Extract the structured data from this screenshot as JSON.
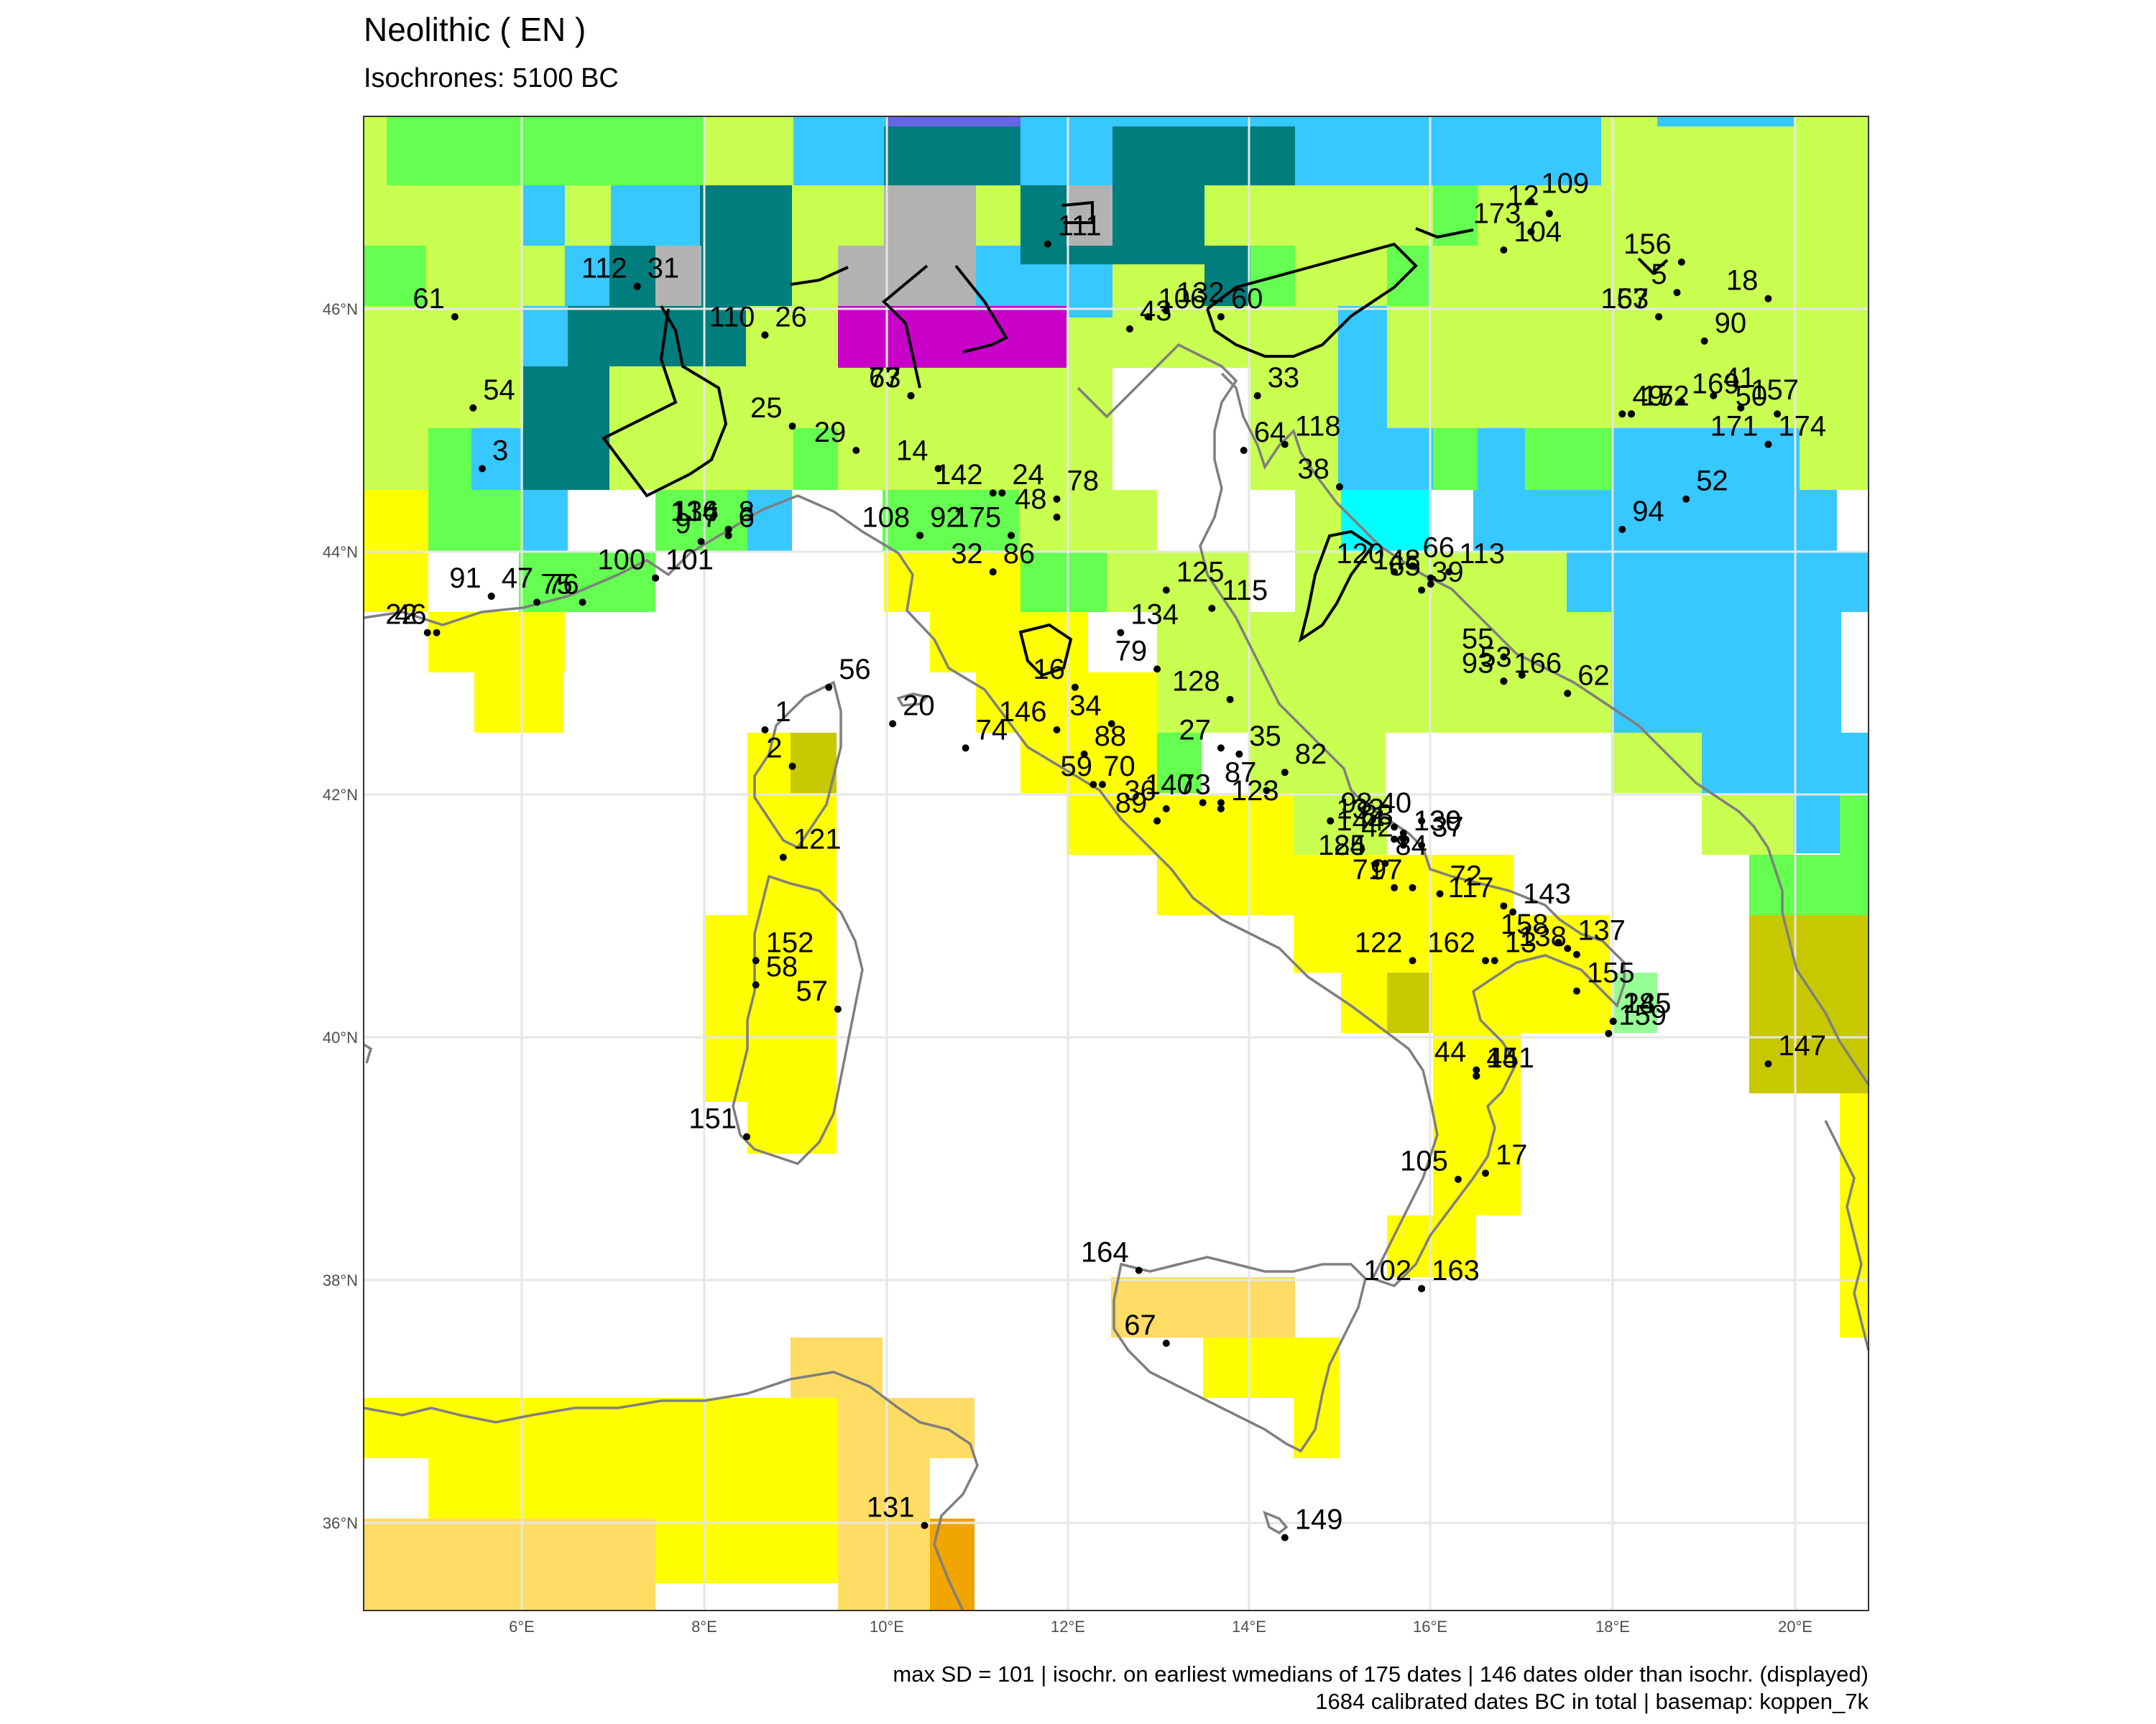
{
  "title": "Neolithic ( EN )",
  "subtitle": "Isochrones: 5100 BC",
  "caption": {
    "line1": "max SD = 101 | isochr. on earliest wmedians of 175 dates | 146 dates older than isochr. (displayed)",
    "line2": "1684 calibrated dates BC in total | basemap: koppen_7k"
  },
  "axes": {
    "lat_labels": [
      "46°N",
      "44°N",
      "42°N",
      "40°N",
      "38°N",
      "36°N"
    ],
    "lon_labels": [
      "6°E",
      "8°E",
      "10°E",
      "12°E",
      "14°E",
      "16°E",
      "18°E",
      "20°E"
    ]
  },
  "colors": {
    "bsh_yellow": "#ffff00",
    "bwh_orange": "#f0a500",
    "bsk_light_orange": "#ffdc64",
    "csa_lime": "#c8ff50",
    "cfb_green": "#64ff50",
    "cfa_green": "#32c864",
    "dfb_blue": "#37c8ff",
    "dfc_teal": "#007d7d",
    "et_grey": "#b2b2b2",
    "magenta": "#c800c8",
    "olive": "#c8c800",
    "mint": "#96ff96",
    "cyan": "#00ffff",
    "purple_blue": "#6464e6"
  },
  "chart_data": {
    "type": "map",
    "region": "Italy and Central Mediterranean",
    "lon_range": [
      4.3,
      20.8
    ],
    "lat_range": [
      35.3,
      47.6
    ],
    "sites": [
      {
        "id": "1",
        "lon": 8.7,
        "lat": 42.55
      },
      {
        "id": "2",
        "lon": 9.0,
        "lat": 42.25
      },
      {
        "id": "3",
        "lon": 5.6,
        "lat": 44.7
      },
      {
        "id": "5",
        "lon": 18.7,
        "lat": 46.15
      },
      {
        "id": "6",
        "lon": 8.3,
        "lat": 44.15
      },
      {
        "id": "7",
        "lon": 8.3,
        "lat": 44.15
      },
      {
        "id": "8",
        "lon": 8.3,
        "lat": 44.2
      },
      {
        "id": "9",
        "lon": 8.0,
        "lat": 44.1
      },
      {
        "id": "10",
        "lon": 7.5,
        "lat": 43.8
      },
      {
        "id": "12",
        "lon": 17.3,
        "lat": 46.8
      },
      {
        "id": "13",
        "lon": 16.7,
        "lat": 40.65
      },
      {
        "id": "14",
        "lon": 10.6,
        "lat": 44.7
      },
      {
        "id": "15",
        "lon": 18.2,
        "lat": 45.15
      },
      {
        "id": "16",
        "lon": 12.1,
        "lat": 42.9
      },
      {
        "id": "17",
        "lon": 16.6,
        "lat": 38.9
      },
      {
        "id": "18",
        "lon": 19.7,
        "lat": 46.1
      },
      {
        "id": "20",
        "lon": 10.1,
        "lat": 42.6
      },
      {
        "id": "22",
        "lon": 5.0,
        "lat": 43.35
      },
      {
        "id": "24",
        "lon": 11.3,
        "lat": 44.5
      },
      {
        "id": "25",
        "lon": 9.0,
        "lat": 45.05
      },
      {
        "id": "26",
        "lon": 8.7,
        "lat": 45.8
      },
      {
        "id": "27",
        "lon": 13.7,
        "lat": 42.4
      },
      {
        "id": "28",
        "lon": 18.0,
        "lat": 40.15
      },
      {
        "id": "29",
        "lon": 9.7,
        "lat": 44.85
      },
      {
        "id": "31",
        "lon": 7.3,
        "lat": 46.2
      },
      {
        "id": "32",
        "lon": 11.2,
        "lat": 43.85
      },
      {
        "id": "33",
        "lon": 14.1,
        "lat": 45.3
      },
      {
        "id": "34",
        "lon": 12.5,
        "lat": 42.6
      },
      {
        "id": "35",
        "lon": 13.9,
        "lat": 42.35
      },
      {
        "id": "36",
        "lon": 13.1,
        "lat": 41.9
      },
      {
        "id": "37",
        "lon": 15.9,
        "lat": 41.6
      },
      {
        "id": "38",
        "lon": 15.0,
        "lat": 44.55
      },
      {
        "id": "39",
        "lon": 15.9,
        "lat": 43.7
      },
      {
        "id": "40",
        "lon": 15.9,
        "lat": 41.8
      },
      {
        "id": "41",
        "lon": 19.1,
        "lat": 45.3
      },
      {
        "id": "42",
        "lon": 15.7,
        "lat": 41.6
      },
      {
        "id": "43",
        "lon": 12.7,
        "lat": 45.85
      },
      {
        "id": "44",
        "lon": 16.5,
        "lat": 39.75
      },
      {
        "id": "45",
        "lon": 16.5,
        "lat": 39.7
      },
      {
        "id": "46",
        "lon": 5.1,
        "lat": 43.35
      },
      {
        "id": "47",
        "lon": 5.7,
        "lat": 43.65
      },
      {
        "id": "48",
        "lon": 11.9,
        "lat": 44.3
      },
      {
        "id": "49",
        "lon": 18.1,
        "lat": 45.15
      },
      {
        "id": "50",
        "lon": 19.8,
        "lat": 45.15
      },
      {
        "id": "52",
        "lon": 18.8,
        "lat": 44.45
      },
      {
        "id": "53",
        "lon": 17.0,
        "lat": 43.0
      },
      {
        "id": "54",
        "lon": 5.5,
        "lat": 45.2
      },
      {
        "id": "55",
        "lon": 16.8,
        "lat": 43.15
      },
      {
        "id": "56",
        "lon": 9.4,
        "lat": 42.9
      },
      {
        "id": "57",
        "lon": 9.5,
        "lat": 40.25
      },
      {
        "id": "58",
        "lon": 8.6,
        "lat": 40.45
      },
      {
        "id": "59",
        "lon": 12.4,
        "lat": 42.1
      },
      {
        "id": "60",
        "lon": 13.7,
        "lat": 45.95
      },
      {
        "id": "61",
        "lon": 5.3,
        "lat": 45.95
      },
      {
        "id": "62",
        "lon": 17.5,
        "lat": 42.85
      },
      {
        "id": "63",
        "lon": 10.3,
        "lat": 45.3
      },
      {
        "id": "64",
        "lon": 13.95,
        "lat": 44.85
      },
      {
        "id": "65",
        "lon": 16.0,
        "lat": 43.75
      },
      {
        "id": "66",
        "lon": 15.8,
        "lat": 43.9
      },
      {
        "id": "67",
        "lon": 13.1,
        "lat": 37.5
      },
      {
        "id": "70",
        "lon": 12.3,
        "lat": 42.1
      },
      {
        "id": "71",
        "lon": 15.6,
        "lat": 41.25
      },
      {
        "id": "72",
        "lon": 16.1,
        "lat": 41.2
      },
      {
        "id": "73",
        "lon": 13.7,
        "lat": 41.95
      },
      {
        "id": "74",
        "lon": 10.9,
        "lat": 42.4
      },
      {
        "id": "75",
        "lon": 6.7,
        "lat": 43.6
      },
      {
        "id": "76",
        "lon": 6.2,
        "lat": 43.6
      },
      {
        "id": "77",
        "lon": 10.3,
        "lat": 45.3
      },
      {
        "id": "78",
        "lon": 11.9,
        "lat": 44.45
      },
      {
        "id": "79",
        "lon": 13.0,
        "lat": 43.05
      },
      {
        "id": "82",
        "lon": 14.4,
        "lat": 42.2
      },
      {
        "id": "83",
        "lon": 15.7,
        "lat": 41.7
      },
      {
        "id": "84",
        "lon": 15.5,
        "lat": 41.45
      },
      {
        "id": "85",
        "lon": 15.4,
        "lat": 41.45
      },
      {
        "id": "86",
        "lon": 11.2,
        "lat": 43.85
      },
      {
        "id": "87",
        "lon": 14.2,
        "lat": 42.05
      },
      {
        "id": "88",
        "lon": 12.2,
        "lat": 42.35
      },
      {
        "id": "89",
        "lon": 13.0,
        "lat": 41.8
      },
      {
        "id": "90",
        "lon": 19.0,
        "lat": 45.75
      },
      {
        "id": "91",
        "lon": 5.7,
        "lat": 43.65
      },
      {
        "id": "92",
        "lon": 10.4,
        "lat": 44.15
      },
      {
        "id": "93",
        "lon": 16.8,
        "lat": 42.95
      },
      {
        "id": "94",
        "lon": 18.1,
        "lat": 44.2
      },
      {
        "id": "97",
        "lon": 15.8,
        "lat": 41.25
      },
      {
        "id": "98",
        "lon": 14.9,
        "lat": 41.8
      },
      {
        "id": "100",
        "lon": 7.5,
        "lat": 43.8
      },
      {
        "id": "101",
        "lon": 7.5,
        "lat": 43.8
      },
      {
        "id": "102",
        "lon": 15.9,
        "lat": 37.95
      },
      {
        "id": "104",
        "lon": 16.8,
        "lat": 46.5
      },
      {
        "id": "105",
        "lon": 16.3,
        "lat": 38.85
      },
      {
        "id": "106",
        "lon": 12.9,
        "lat": 45.95
      },
      {
        "id": "108",
        "lon": 10.4,
        "lat": 44.15
      },
      {
        "id": "109",
        "lon": 17.1,
        "lat": 46.9
      },
      {
        "id": "110",
        "lon": 8.7,
        "lat": 45.8
      },
      {
        "id": "111",
        "lon": 11.8,
        "lat": 46.55
      },
      {
        "id": "112",
        "lon": 7.3,
        "lat": 46.2
      },
      {
        "id": "113",
        "lon": 16.2,
        "lat": 43.85
      },
      {
        "id": "114",
        "lon": 8.3,
        "lat": 44.2
      },
      {
        "id": "115",
        "lon": 13.6,
        "lat": 43.55
      },
      {
        "id": "117",
        "lon": 16.8,
        "lat": 41.1
      },
      {
        "id": "118",
        "lon": 14.4,
        "lat": 44.9
      },
      {
        "id": "120",
        "lon": 15.6,
        "lat": 43.85
      },
      {
        "id": "121",
        "lon": 8.9,
        "lat": 41.5
      },
      {
        "id": "122",
        "lon": 15.8,
        "lat": 40.65
      },
      {
        "id": "123",
        "lon": 13.7,
        "lat": 41.9
      },
      {
        "id": "124",
        "lon": 15.4,
        "lat": 41.45
      },
      {
        "id": "125",
        "lon": 13.1,
        "lat": 43.7
      },
      {
        "id": "128",
        "lon": 13.8,
        "lat": 42.8
      },
      {
        "id": "130",
        "lon": 15.7,
        "lat": 41.65
      },
      {
        "id": "131",
        "lon": 10.45,
        "lat": 36.0
      },
      {
        "id": "132",
        "lon": 13.1,
        "lat": 46.0
      },
      {
        "id": "133",
        "lon": 15.6,
        "lat": 41.75
      },
      {
        "id": "134",
        "lon": 12.6,
        "lat": 43.35
      },
      {
        "id": "136",
        "lon": 8.3,
        "lat": 44.2
      },
      {
        "id": "137",
        "lon": 17.5,
        "lat": 40.75
      },
      {
        "id": "138",
        "lon": 17.6,
        "lat": 40.7
      },
      {
        "id": "139",
        "lon": 15.7,
        "lat": 41.65
      },
      {
        "id": "140",
        "lon": 13.5,
        "lat": 41.95
      },
      {
        "id": "141",
        "lon": 16.5,
        "lat": 39.7
      },
      {
        "id": "142",
        "lon": 11.2,
        "lat": 44.5
      },
      {
        "id": "143",
        "lon": 16.9,
        "lat": 41.05
      },
      {
        "id": "144",
        "lon": 15.6,
        "lat": 41.65
      },
      {
        "id": "145",
        "lon": 18.0,
        "lat": 40.15
      },
      {
        "id": "146",
        "lon": 11.9,
        "lat": 42.55
      },
      {
        "id": "147",
        "lon": 19.7,
        "lat": 39.8
      },
      {
        "id": "148",
        "lon": 16.0,
        "lat": 43.8
      },
      {
        "id": "149",
        "lon": 14.4,
        "lat": 35.9
      },
      {
        "id": "151",
        "lon": 8.5,
        "lat": 39.2
      },
      {
        "id": "152",
        "lon": 8.6,
        "lat": 40.65
      },
      {
        "id": "153",
        "lon": 18.5,
        "lat": 45.95
      },
      {
        "id": "155",
        "lon": 17.6,
        "lat": 40.4
      },
      {
        "id": "156",
        "lon": 18.75,
        "lat": 46.4
      },
      {
        "id": "157",
        "lon": 19.4,
        "lat": 45.2
      },
      {
        "id": "158",
        "lon": 17.4,
        "lat": 40.8
      },
      {
        "id": "159",
        "lon": 17.95,
        "lat": 40.05
      },
      {
        "id": "162",
        "lon": 16.6,
        "lat": 40.65
      },
      {
        "id": "163",
        "lon": 15.9,
        "lat": 37.95
      },
      {
        "id": "164",
        "lon": 12.8,
        "lat": 38.1
      },
      {
        "id": "166",
        "lon": 16.8,
        "lat": 42.95
      },
      {
        "id": "167",
        "lon": 18.5,
        "lat": 45.95
      },
      {
        "id": "169",
        "lon": 18.75,
        "lat": 45.25
      },
      {
        "id": "171",
        "lon": 19.7,
        "lat": 44.9
      },
      {
        "id": "172",
        "lon": 18.2,
        "lat": 45.15
      },
      {
        "id": "173",
        "lon": 17.1,
        "lat": 46.65
      },
      {
        "id": "174",
        "lon": 19.7,
        "lat": 44.9
      },
      {
        "id": "175",
        "lon": 11.4,
        "lat": 44.15
      }
    ]
  }
}
